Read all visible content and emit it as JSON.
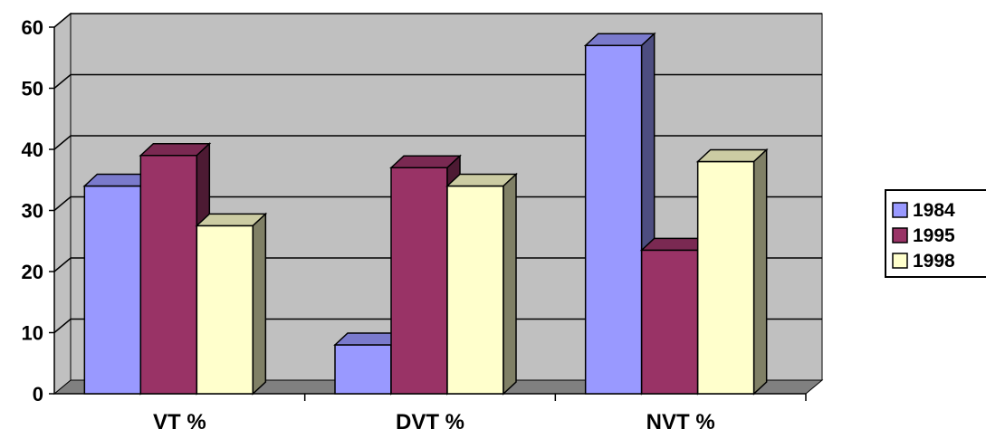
{
  "chart_data": {
    "type": "bar",
    "categories": [
      "VT %",
      "DVT %",
      "NVT %"
    ],
    "series": [
      {
        "name": "1984",
        "values": [
          34,
          8,
          57
        ],
        "color": "#9999FF",
        "side_color": "#4D4D80",
        "top_color": "#7A7ACC"
      },
      {
        "name": "1995",
        "values": [
          39,
          37,
          23.5
        ],
        "color": "#993366",
        "side_color": "#4D1A33",
        "top_color": "#7A2952"
      },
      {
        "name": "1998",
        "values": [
          27.5,
          34,
          38
        ],
        "color": "#FFFFCC",
        "side_color": "#808066",
        "top_color": "#CCCCA3"
      }
    ],
    "y_ticks": [
      "0",
      "10",
      "20",
      "30",
      "40",
      "50",
      "60"
    ],
    "ylim": [
      0,
      60
    ],
    "grid": true,
    "legend_position": "right",
    "wall_color": "#C0C0C0",
    "floor_color": "#808080"
  }
}
